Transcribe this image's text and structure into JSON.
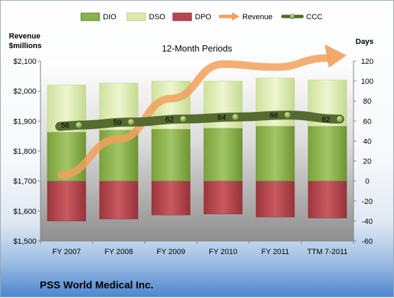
{
  "chart_data": {
    "type": "bar",
    "categories": [
      "FY 2007",
      "FY 2008",
      "FY 2009",
      "FY 2010",
      "FY 2011",
      "TTM 7-2011"
    ],
    "series": [
      {
        "name": "DIO",
        "axis": "right",
        "values": [
          49,
          51,
          52,
          53,
          55,
          55
        ]
      },
      {
        "name": "DSO",
        "axis": "right",
        "values": [
          47,
          47,
          48,
          47,
          48,
          46
        ]
      },
      {
        "name": "DPO",
        "axis": "right",
        "values": [
          -40,
          -38,
          -34,
          -33,
          -36,
          -37
        ]
      },
      {
        "name": "Revenue",
        "axis": "left",
        "values": [
          1720,
          1840,
          1975,
          2090,
          2080,
          2110
        ]
      },
      {
        "name": "CCC",
        "axis": "right",
        "values": [
          56,
          59,
          62,
          64,
          66,
          62
        ]
      }
    ],
    "data_labels": [
      "56",
      "59",
      "62",
      "64",
      "66",
      "62"
    ],
    "title": "12-Month Periods",
    "subtitle": "PSS World Medical Inc.",
    "ylabel_left": "Revenue\n$millions",
    "ylabel_right": "Days",
    "ylim_left": [
      1500,
      2100
    ],
    "ylim_right": [
      -60,
      120
    ],
    "yticks_left": [
      "$1,500",
      "$1,600",
      "$1,700",
      "$1,800",
      "$1,900",
      "$2,000",
      "$2,100"
    ],
    "yticks_right": [
      "-60",
      "-40",
      "-20",
      "0",
      "20",
      "40",
      "60",
      "80",
      "100",
      "120"
    ],
    "legend_position": "top",
    "grid": false
  },
  "colors": {
    "dio": "#8bb24a",
    "dso": "#dbeaae",
    "dpo": "#b6474e",
    "revenue": "#f2a05c",
    "ccc": "#556b2f",
    "plot_bg": "#a9a9a9"
  }
}
